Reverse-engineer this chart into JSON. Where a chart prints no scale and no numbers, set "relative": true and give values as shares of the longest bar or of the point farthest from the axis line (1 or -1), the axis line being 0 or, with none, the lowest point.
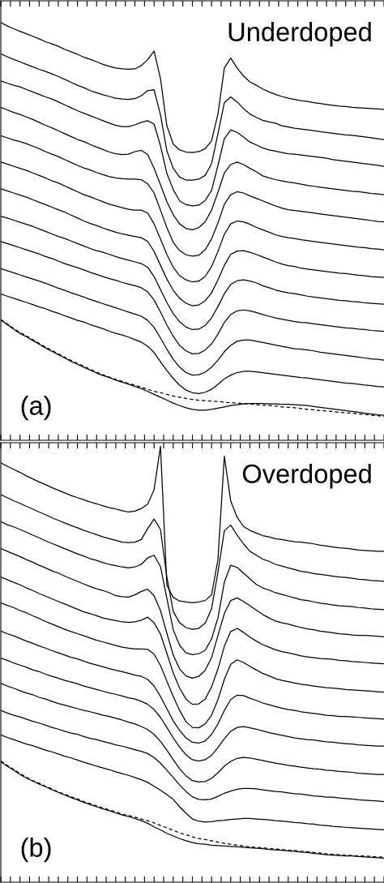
{
  "chart_data": [
    {
      "type": "line",
      "title": "Underdoped",
      "annotations": [
        "(a)"
      ],
      "relative": true,
      "color": "#000000",
      "categories": [
        null,
        null,
        null,
        null,
        null,
        null,
        null,
        null,
        null,
        null,
        null,
        null,
        null,
        null,
        null,
        null,
        null,
        null,
        null,
        null,
        null,
        null,
        null,
        null,
        null,
        null,
        null,
        null,
        null,
        null,
        null,
        null,
        null,
        null,
        null,
        null,
        null,
        null,
        null,
        null,
        null,
        null,
        null,
        null,
        null,
        null,
        null,
        null,
        null,
        null,
        null,
        null,
        null,
        null,
        null,
        null,
        null,
        null,
        null,
        null,
        null
      ],
      "series": [
        {
          "values": [
            1.0,
            0.992,
            0.985,
            0.979,
            0.973,
            0.967,
            0.961,
            0.954,
            0.949,
            0.943,
            0.936,
            0.93,
            0.924,
            0.917,
            0.912,
            0.906,
            0.9,
            0.895,
            0.891,
            0.889,
            0.888,
            0.889,
            0.897,
            0.911,
            0.932,
            0.866,
            0.753,
            0.709,
            0.695,
            0.69,
            0.689,
            0.691,
            0.698,
            0.717,
            0.781,
            0.891,
            0.915,
            0.891,
            0.872,
            0.858,
            0.85,
            0.841,
            0.834,
            0.828,
            0.823,
            0.819,
            0.816,
            0.813,
            0.811,
            0.808,
            0.806,
            0.804,
            0.802,
            0.8,
            0.799,
            0.797,
            0.796,
            0.795,
            0.794,
            0.793,
            0.792
          ]
        },
        {
          "values": [
            0.925,
            0.918,
            0.912,
            0.906,
            0.9,
            0.894,
            0.888,
            0.883,
            0.877,
            0.871,
            0.864,
            0.857,
            0.85,
            0.844,
            0.837,
            0.832,
            0.827,
            0.823,
            0.819,
            0.817,
            0.816,
            0.818,
            0.825,
            0.837,
            0.839,
            0.779,
            0.693,
            0.651,
            0.63,
            0.623,
            0.623,
            0.625,
            0.634,
            0.662,
            0.734,
            0.808,
            0.822,
            0.81,
            0.794,
            0.781,
            0.773,
            0.766,
            0.762,
            0.759,
            0.753,
            0.75,
            0.747,
            0.745,
            0.743,
            0.741,
            0.739,
            0.737,
            0.735,
            0.733,
            0.731,
            0.73,
            0.728,
            0.726,
            0.724,
            0.722,
            0.72
          ]
        },
        {
          "values": [
            0.86,
            0.855,
            0.85,
            0.846,
            0.84,
            0.834,
            0.828,
            0.822,
            0.817,
            0.81,
            0.803,
            0.796,
            0.789,
            0.783,
            0.777,
            0.771,
            0.765,
            0.759,
            0.754,
            0.751,
            0.751,
            0.755,
            0.761,
            0.765,
            0.757,
            0.705,
            0.639,
            0.6,
            0.573,
            0.564,
            0.561,
            0.563,
            0.574,
            0.598,
            0.658,
            0.722,
            0.743,
            0.737,
            0.726,
            0.714,
            0.707,
            0.7,
            0.695,
            0.692,
            0.689,
            0.686,
            0.685,
            0.683,
            0.681,
            0.679,
            0.677,
            0.675,
            0.672,
            0.67,
            0.668,
            0.666,
            0.664,
            0.662,
            0.66,
            0.658,
            0.656
          ]
        },
        {
          "values": [
            0.797,
            0.791,
            0.785,
            0.78,
            0.774,
            0.768,
            0.761,
            0.754,
            0.748,
            0.741,
            0.734,
            0.727,
            0.72,
            0.715,
            0.708,
            0.702,
            0.696,
            0.69,
            0.686,
            0.684,
            0.685,
            0.691,
            0.694,
            0.684,
            0.651,
            0.612,
            0.571,
            0.54,
            0.518,
            0.507,
            0.504,
            0.509,
            0.523,
            0.551,
            0.594,
            0.64,
            0.66,
            0.666,
            0.66,
            0.651,
            0.643,
            0.633,
            0.628,
            0.624,
            0.621,
            0.618,
            0.616,
            0.613,
            0.61,
            0.608,
            0.606,
            0.604,
            0.602,
            0.6,
            0.598,
            0.596,
            0.595,
            0.593,
            0.591,
            0.59,
            0.588
          ]
        },
        {
          "values": [
            0.729,
            0.724,
            0.719,
            0.715,
            0.71,
            0.704,
            0.698,
            0.691,
            0.685,
            0.679,
            0.672,
            0.665,
            0.658,
            0.652,
            0.647,
            0.641,
            0.636,
            0.631,
            0.628,
            0.626,
            0.625,
            0.625,
            0.624,
            0.614,
            0.592,
            0.551,
            0.509,
            0.474,
            0.454,
            0.444,
            0.441,
            0.443,
            0.456,
            0.482,
            0.52,
            0.565,
            0.588,
            0.595,
            0.592,
            0.585,
            0.579,
            0.573,
            0.567,
            0.561,
            0.556,
            0.552,
            0.55,
            0.548,
            0.546,
            0.544,
            0.542,
            0.54,
            0.538,
            0.536,
            0.534,
            0.532,
            0.53,
            0.528,
            0.526,
            0.524,
            0.523
          ]
        },
        {
          "values": [
            0.666,
            0.661,
            0.656,
            0.651,
            0.646,
            0.64,
            0.634,
            0.628,
            0.621,
            0.616,
            0.609,
            0.602,
            0.595,
            0.588,
            0.583,
            0.577,
            0.571,
            0.565,
            0.561,
            0.557,
            0.553,
            0.551,
            0.551,
            0.544,
            0.518,
            0.482,
            0.445,
            0.414,
            0.394,
            0.384,
            0.379,
            0.381,
            0.392,
            0.416,
            0.452,
            0.493,
            0.518,
            0.525,
            0.523,
            0.517,
            0.51,
            0.504,
            0.498,
            0.492,
            0.488,
            0.485,
            0.483,
            0.48,
            0.478,
            0.476,
            0.474,
            0.472,
            0.47,
            0.468,
            0.466,
            0.464,
            0.462,
            0.461,
            0.459,
            0.458,
            0.456
          ]
        },
        {
          "values": [
            0.602,
            0.597,
            0.592,
            0.587,
            0.582,
            0.576,
            0.57,
            0.564,
            0.558,
            0.552,
            0.546,
            0.539,
            0.532,
            0.525,
            0.519,
            0.514,
            0.508,
            0.503,
            0.498,
            0.494,
            0.491,
            0.488,
            0.485,
            0.476,
            0.452,
            0.419,
            0.386,
            0.359,
            0.34,
            0.328,
            0.322,
            0.324,
            0.334,
            0.353,
            0.384,
            0.419,
            0.445,
            0.453,
            0.454,
            0.45,
            0.445,
            0.439,
            0.433,
            0.427,
            0.422,
            0.418,
            0.416,
            0.412,
            0.41,
            0.408,
            0.406,
            0.404,
            0.402,
            0.4,
            0.399,
            0.397,
            0.395,
            0.394,
            0.392,
            0.391,
            0.39
          ]
        },
        {
          "values": [
            0.536,
            0.532,
            0.527,
            0.522,
            0.517,
            0.512,
            0.506,
            0.5,
            0.494,
            0.488,
            0.483,
            0.477,
            0.471,
            0.465,
            0.459,
            0.454,
            0.45,
            0.445,
            0.44,
            0.435,
            0.431,
            0.427,
            0.423,
            0.414,
            0.392,
            0.361,
            0.33,
            0.303,
            0.284,
            0.271,
            0.265,
            0.266,
            0.275,
            0.293,
            0.32,
            0.351,
            0.373,
            0.382,
            0.384,
            0.381,
            0.377,
            0.37,
            0.365,
            0.36,
            0.356,
            0.353,
            0.351,
            0.348,
            0.345,
            0.343,
            0.341,
            0.339,
            0.337,
            0.335,
            0.334,
            0.332,
            0.331,
            0.329,
            0.328,
            0.327,
            0.326
          ]
        },
        {
          "values": [
            0.476,
            0.471,
            0.466,
            0.461,
            0.456,
            0.451,
            0.446,
            0.44,
            0.435,
            0.429,
            0.423,
            0.418,
            0.413,
            0.408,
            0.402,
            0.397,
            0.392,
            0.387,
            0.383,
            0.378,
            0.374,
            0.37,
            0.365,
            0.355,
            0.336,
            0.307,
            0.276,
            0.249,
            0.227,
            0.214,
            0.207,
            0.208,
            0.216,
            0.231,
            0.254,
            0.282,
            0.301,
            0.31,
            0.312,
            0.31,
            0.306,
            0.301,
            0.297,
            0.293,
            0.29,
            0.287,
            0.284,
            0.282,
            0.281,
            0.279,
            0.277,
            0.275,
            0.273,
            0.271,
            0.269,
            0.268,
            0.266,
            0.265,
            0.263,
            0.262,
            0.261
          ]
        },
        {
          "values": [
            0.411,
            0.406,
            0.401,
            0.396,
            0.391,
            0.386,
            0.381,
            0.376,
            0.37,
            0.364,
            0.359,
            0.353,
            0.348,
            0.343,
            0.337,
            0.332,
            0.327,
            0.322,
            0.317,
            0.312,
            0.307,
            0.302,
            0.297,
            0.287,
            0.27,
            0.245,
            0.218,
            0.194,
            0.175,
            0.162,
            0.156,
            0.157,
            0.163,
            0.175,
            0.192,
            0.212,
            0.227,
            0.237,
            0.24,
            0.24,
            0.237,
            0.234,
            0.231,
            0.228,
            0.225,
            0.222,
            0.219,
            0.218,
            0.216,
            0.214,
            0.211,
            0.209,
            0.207,
            0.205,
            0.203,
            0.201,
            0.199,
            0.197,
            0.195,
            0.194,
            0.192
          ]
        },
        {
          "values": [
            0.35,
            0.345,
            0.34,
            0.335,
            0.33,
            0.325,
            0.319,
            0.315,
            0.309,
            0.304,
            0.298,
            0.293,
            0.287,
            0.283,
            0.277,
            0.272,
            0.267,
            0.261,
            0.256,
            0.252,
            0.247,
            0.241,
            0.235,
            0.225,
            0.21,
            0.188,
            0.167,
            0.148,
            0.132,
            0.12,
            0.114,
            0.112,
            0.115,
            0.122,
            0.134,
            0.147,
            0.156,
            0.162,
            0.165,
            0.165,
            0.164,
            0.162,
            0.16,
            0.158,
            0.156,
            0.154,
            0.152,
            0.15,
            0.149,
            0.147,
            0.145,
            0.143,
            0.141,
            0.139,
            0.137,
            0.136,
            0.134,
            0.132,
            0.131,
            0.129,
            0.128
          ]
        },
        {
          "values": [
            0.288,
            0.277,
            0.266,
            0.256,
            0.248,
            0.239,
            0.23,
            0.221,
            0.213,
            0.205,
            0.197,
            0.189,
            0.182,
            0.175,
            0.168,
            0.161,
            0.155,
            0.15,
            0.144,
            0.139,
            0.134,
            0.129,
            0.124,
            0.117,
            0.11,
            0.103,
            0.096,
            0.089,
            0.083,
            0.078,
            0.074,
            0.072,
            0.072,
            0.074,
            0.077,
            0.08,
            0.083,
            0.085,
            0.087,
            0.088,
            0.088,
            0.088,
            0.087,
            0.087,
            0.086,
            0.086,
            0.085,
            0.084,
            0.083,
            0.081,
            0.079,
            0.077,
            0.075,
            0.073,
            0.071,
            0.069,
            0.067,
            0.065,
            0.063,
            0.061,
            0.06
          ]
        },
        {
          "line_style": "dashed",
          "values": [
            0.289,
            0.279,
            0.268,
            0.258,
            0.25,
            0.241,
            0.232,
            0.223,
            0.215,
            0.207,
            0.199,
            0.191,
            0.184,
            0.177,
            0.17,
            0.163,
            0.157,
            0.151,
            0.146,
            0.141,
            0.136,
            0.132,
            0.127,
            0.122,
            0.117,
            0.114,
            0.11,
            0.106,
            0.103,
            0.1,
            0.098,
            0.096,
            0.095,
            0.094,
            0.093,
            0.091,
            0.09,
            0.089,
            0.088,
            0.087,
            0.085,
            0.084,
            0.083,
            0.082,
            0.08,
            0.079,
            0.078,
            0.076,
            0.074,
            0.073,
            0.071,
            0.07,
            0.069,
            0.067,
            0.066,
            0.065,
            0.063,
            0.062,
            0.06,
            0.059,
            0.057
          ]
        }
      ]
    },
    {
      "type": "line",
      "title": "Overdoped",
      "annotations": [
        "(b)"
      ],
      "relative": true,
      "color": "#000000",
      "categories": [
        null,
        null,
        null,
        null,
        null,
        null,
        null,
        null,
        null,
        null,
        null,
        null,
        null,
        null,
        null,
        null,
        null,
        null,
        null,
        null,
        null,
        null,
        null,
        null,
        null,
        null,
        null,
        null,
        null,
        null,
        null,
        null,
        null,
        null,
        null,
        null,
        null,
        null,
        null,
        null,
        null,
        null,
        null,
        null,
        null,
        null,
        null,
        null,
        null,
        null,
        null,
        null,
        null,
        null,
        null,
        null,
        null,
        null,
        null,
        null,
        null
      ],
      "series": [
        {
          "values": [
            0.962,
            0.954,
            0.947,
            0.94,
            0.932,
            0.925,
            0.918,
            0.912,
            0.905,
            0.899,
            0.893,
            0.887,
            0.882,
            0.877,
            0.872,
            0.868,
            0.863,
            0.859,
            0.856,
            0.852,
            0.849,
            0.851,
            0.857,
            0.867,
            0.9,
            1.0,
            0.681,
            0.653,
            0.645,
            0.643,
            0.641,
            0.643,
            0.646,
            0.659,
            0.74,
            0.977,
            0.874,
            0.837,
            0.816,
            0.807,
            0.801,
            0.795,
            0.792,
            0.788,
            0.786,
            0.783,
            0.781,
            0.78,
            0.778,
            0.776,
            0.773,
            0.771,
            0.769,
            0.767,
            0.766,
            0.764,
            0.762,
            0.761,
            0.76,
            0.759,
            0.759
          ]
        },
        {
          "values": [
            0.889,
            0.882,
            0.875,
            0.869,
            0.862,
            0.856,
            0.849,
            0.843,
            0.836,
            0.83,
            0.824,
            0.818,
            0.813,
            0.807,
            0.802,
            0.797,
            0.792,
            0.788,
            0.784,
            0.78,
            0.779,
            0.78,
            0.786,
            0.811,
            0.833,
            0.809,
            0.7,
            0.621,
            0.595,
            0.584,
            0.58,
            0.582,
            0.594,
            0.627,
            0.711,
            0.806,
            0.819,
            0.796,
            0.776,
            0.759,
            0.75,
            0.741,
            0.736,
            0.729,
            0.725,
            0.721,
            0.717,
            0.713,
            0.711,
            0.708,
            0.706,
            0.704,
            0.702,
            0.7,
            0.699,
            0.697,
            0.695,
            0.694,
            0.692,
            0.691,
            0.69
          ]
        },
        {
          "values": [
            0.827,
            0.82,
            0.815,
            0.809,
            0.803,
            0.796,
            0.79,
            0.783,
            0.777,
            0.771,
            0.765,
            0.759,
            0.753,
            0.748,
            0.742,
            0.738,
            0.733,
            0.729,
            0.726,
            0.723,
            0.721,
            0.723,
            0.729,
            0.744,
            0.75,
            0.724,
            0.651,
            0.579,
            0.543,
            0.526,
            0.522,
            0.524,
            0.532,
            0.558,
            0.606,
            0.688,
            0.727,
            0.722,
            0.709,
            0.696,
            0.683,
            0.675,
            0.67,
            0.664,
            0.66,
            0.656,
            0.652,
            0.648,
            0.646,
            0.643,
            0.64,
            0.638,
            0.636,
            0.634,
            0.633,
            0.632,
            0.63,
            0.629,
            0.627,
            0.626,
            0.625
          ]
        },
        {
          "values": [
            0.765,
            0.759,
            0.753,
            0.747,
            0.74,
            0.734,
            0.727,
            0.721,
            0.714,
            0.709,
            0.702,
            0.696,
            0.69,
            0.684,
            0.678,
            0.673,
            0.669,
            0.664,
            0.657,
            0.655,
            0.654,
            0.659,
            0.667,
            0.672,
            0.657,
            0.623,
            0.571,
            0.521,
            0.489,
            0.473,
            0.468,
            0.472,
            0.486,
            0.515,
            0.566,
            0.616,
            0.646,
            0.652,
            0.644,
            0.634,
            0.624,
            0.614,
            0.606,
            0.599,
            0.595,
            0.592,
            0.588,
            0.584,
            0.581,
            0.579,
            0.576,
            0.574,
            0.572,
            0.57,
            0.569,
            0.567,
            0.566,
            0.566,
            0.565,
            0.564,
            0.563
          ]
        },
        {
          "values": [
            0.7,
            0.694,
            0.688,
            0.682,
            0.675,
            0.669,
            0.662,
            0.656,
            0.65,
            0.644,
            0.638,
            0.632,
            0.626,
            0.62,
            0.616,
            0.611,
            0.606,
            0.603,
            0.6,
            0.597,
            0.596,
            0.597,
            0.601,
            0.608,
            0.595,
            0.569,
            0.525,
            0.48,
            0.445,
            0.42,
            0.408,
            0.409,
            0.42,
            0.448,
            0.489,
            0.541,
            0.575,
            0.582,
            0.573,
            0.562,
            0.553,
            0.545,
            0.539,
            0.533,
            0.529,
            0.526,
            0.523,
            0.519,
            0.517,
            0.515,
            0.513,
            0.512,
            0.511,
            0.509,
            0.508,
            0.506,
            0.505,
            0.504,
            0.503,
            0.502,
            0.501
          ]
        },
        {
          "values": [
            0.641,
            0.635,
            0.63,
            0.623,
            0.618,
            0.611,
            0.605,
            0.598,
            0.592,
            0.586,
            0.58,
            0.575,
            0.57,
            0.565,
            0.56,
            0.555,
            0.551,
            0.547,
            0.543,
            0.539,
            0.537,
            0.535,
            0.535,
            0.534,
            0.523,
            0.497,
            0.461,
            0.426,
            0.394,
            0.368,
            0.355,
            0.354,
            0.363,
            0.383,
            0.419,
            0.465,
            0.5,
            0.51,
            0.504,
            0.495,
            0.487,
            0.479,
            0.473,
            0.467,
            0.463,
            0.46,
            0.457,
            0.454,
            0.452,
            0.45,
            0.448,
            0.446,
            0.445,
            0.444,
            0.442,
            0.441,
            0.44,
            0.439,
            0.438,
            0.437,
            0.436
          ]
        },
        {
          "values": [
            0.576,
            0.57,
            0.565,
            0.559,
            0.553,
            0.548,
            0.542,
            0.537,
            0.531,
            0.526,
            0.521,
            0.516,
            0.512,
            0.507,
            0.502,
            0.498,
            0.494,
            0.49,
            0.486,
            0.483,
            0.479,
            0.475,
            0.472,
            0.465,
            0.45,
            0.426,
            0.398,
            0.37,
            0.348,
            0.331,
            0.321,
            0.319,
            0.324,
            0.339,
            0.363,
            0.394,
            0.419,
            0.429,
            0.428,
            0.422,
            0.417,
            0.411,
            0.407,
            0.403,
            0.399,
            0.396,
            0.394,
            0.391,
            0.389,
            0.387,
            0.385,
            0.383,
            0.382,
            0.38,
            0.38,
            0.379,
            0.378,
            0.377,
            0.376,
            0.375,
            0.374
          ]
        },
        {
          "values": [
            0.514,
            0.509,
            0.503,
            0.498,
            0.493,
            0.487,
            0.483,
            0.477,
            0.472,
            0.468,
            0.463,
            0.459,
            0.455,
            0.45,
            0.446,
            0.442,
            0.438,
            0.434,
            0.431,
            0.427,
            0.423,
            0.42,
            0.415,
            0.408,
            0.396,
            0.378,
            0.355,
            0.331,
            0.31,
            0.292,
            0.281,
            0.278,
            0.281,
            0.291,
            0.309,
            0.329,
            0.346,
            0.355,
            0.357,
            0.354,
            0.351,
            0.347,
            0.343,
            0.34,
            0.337,
            0.334,
            0.331,
            0.329,
            0.327,
            0.326,
            0.324,
            0.322,
            0.321,
            0.319,
            0.318,
            0.317,
            0.315,
            0.314,
            0.313,
            0.312,
            0.312
          ]
        },
        {
          "values": [
            0.456,
            0.45,
            0.445,
            0.439,
            0.434,
            0.43,
            0.424,
            0.42,
            0.415,
            0.41,
            0.406,
            0.402,
            0.398,
            0.394,
            0.391,
            0.387,
            0.383,
            0.38,
            0.376,
            0.372,
            0.367,
            0.363,
            0.357,
            0.35,
            0.339,
            0.323,
            0.303,
            0.281,
            0.26,
            0.244,
            0.233,
            0.23,
            0.231,
            0.238,
            0.251,
            0.266,
            0.277,
            0.284,
            0.286,
            0.285,
            0.282,
            0.279,
            0.276,
            0.273,
            0.271,
            0.268,
            0.266,
            0.264,
            0.262,
            0.26,
            0.259,
            0.257,
            0.256,
            0.254,
            0.253,
            0.252,
            0.25,
            0.249,
            0.248,
            0.247,
            0.247
          ]
        },
        {
          "values": [
            0.394,
            0.388,
            0.383,
            0.379,
            0.374,
            0.369,
            0.365,
            0.36,
            0.355,
            0.351,
            0.346,
            0.342,
            0.339,
            0.334,
            0.33,
            0.327,
            0.323,
            0.319,
            0.315,
            0.312,
            0.308,
            0.304,
            0.3,
            0.295,
            0.286,
            0.273,
            0.257,
            0.24,
            0.223,
            0.208,
            0.196,
            0.19,
            0.189,
            0.191,
            0.197,
            0.204,
            0.209,
            0.213,
            0.215,
            0.215,
            0.214,
            0.212,
            0.21,
            0.208,
            0.207,
            0.205,
            0.203,
            0.202,
            0.2,
            0.198,
            0.197,
            0.195,
            0.195,
            0.193,
            0.192,
            0.191,
            0.189,
            0.188,
            0.187,
            0.186,
            0.185
          ]
        },
        {
          "values": [
            0.338,
            0.332,
            0.327,
            0.322,
            0.317,
            0.313,
            0.308,
            0.303,
            0.299,
            0.294,
            0.289,
            0.285,
            0.28,
            0.275,
            0.271,
            0.266,
            0.262,
            0.258,
            0.253,
            0.249,
            0.245,
            0.24,
            0.235,
            0.229,
            0.22,
            0.211,
            0.201,
            0.19,
            0.173,
            0.158,
            0.145,
            0.14,
            0.138,
            0.139,
            0.141,
            0.142,
            0.144,
            0.145,
            0.146,
            0.146,
            0.145,
            0.144,
            0.143,
            0.141,
            0.14,
            0.139,
            0.137,
            0.136,
            0.134,
            0.133,
            0.131,
            0.13,
            0.128,
            0.127,
            0.126,
            0.125,
            0.124,
            0.123,
            0.122,
            0.121,
            0.12
          ]
        },
        {
          "values": [
            0.276,
            0.266,
            0.257,
            0.247,
            0.239,
            0.232,
            0.225,
            0.219,
            0.212,
            0.206,
            0.2,
            0.194,
            0.189,
            0.183,
            0.178,
            0.173,
            0.168,
            0.164,
            0.159,
            0.154,
            0.151,
            0.146,
            0.141,
            0.135,
            0.127,
            0.12,
            0.112,
            0.106,
            0.1,
            0.095,
            0.091,
            0.088,
            0.087,
            0.085,
            0.084,
            0.083,
            0.082,
            0.081,
            0.08,
            0.079,
            0.078,
            0.077,
            0.075,
            0.074,
            0.073,
            0.072,
            0.071,
            0.069,
            0.068,
            0.066,
            0.065,
            0.063,
            0.062,
            0.061,
            0.06,
            0.06,
            0.059,
            0.058,
            0.057,
            0.056,
            0.055
          ]
        },
        {
          "line_style": "dashed",
          "values": [
            0.278,
            0.268,
            0.259,
            0.249,
            0.241,
            0.233,
            0.227,
            0.22,
            0.214,
            0.207,
            0.202,
            0.196,
            0.191,
            0.185,
            0.18,
            0.175,
            0.17,
            0.166,
            0.161,
            0.156,
            0.153,
            0.149,
            0.145,
            0.141,
            0.136,
            0.13,
            0.125,
            0.119,
            0.113,
            0.109,
            0.104,
            0.1,
            0.098,
            0.095,
            0.092,
            0.089,
            0.087,
            0.085,
            0.083,
            0.081,
            0.08,
            0.079,
            0.077,
            0.076,
            0.075,
            0.073,
            0.073,
            0.071,
            0.07,
            0.068,
            0.067,
            0.065,
            0.064,
            0.063,
            0.062,
            0.061,
            0.06,
            0.06,
            0.059,
            0.058,
            0.057
          ]
        }
      ]
    }
  ]
}
